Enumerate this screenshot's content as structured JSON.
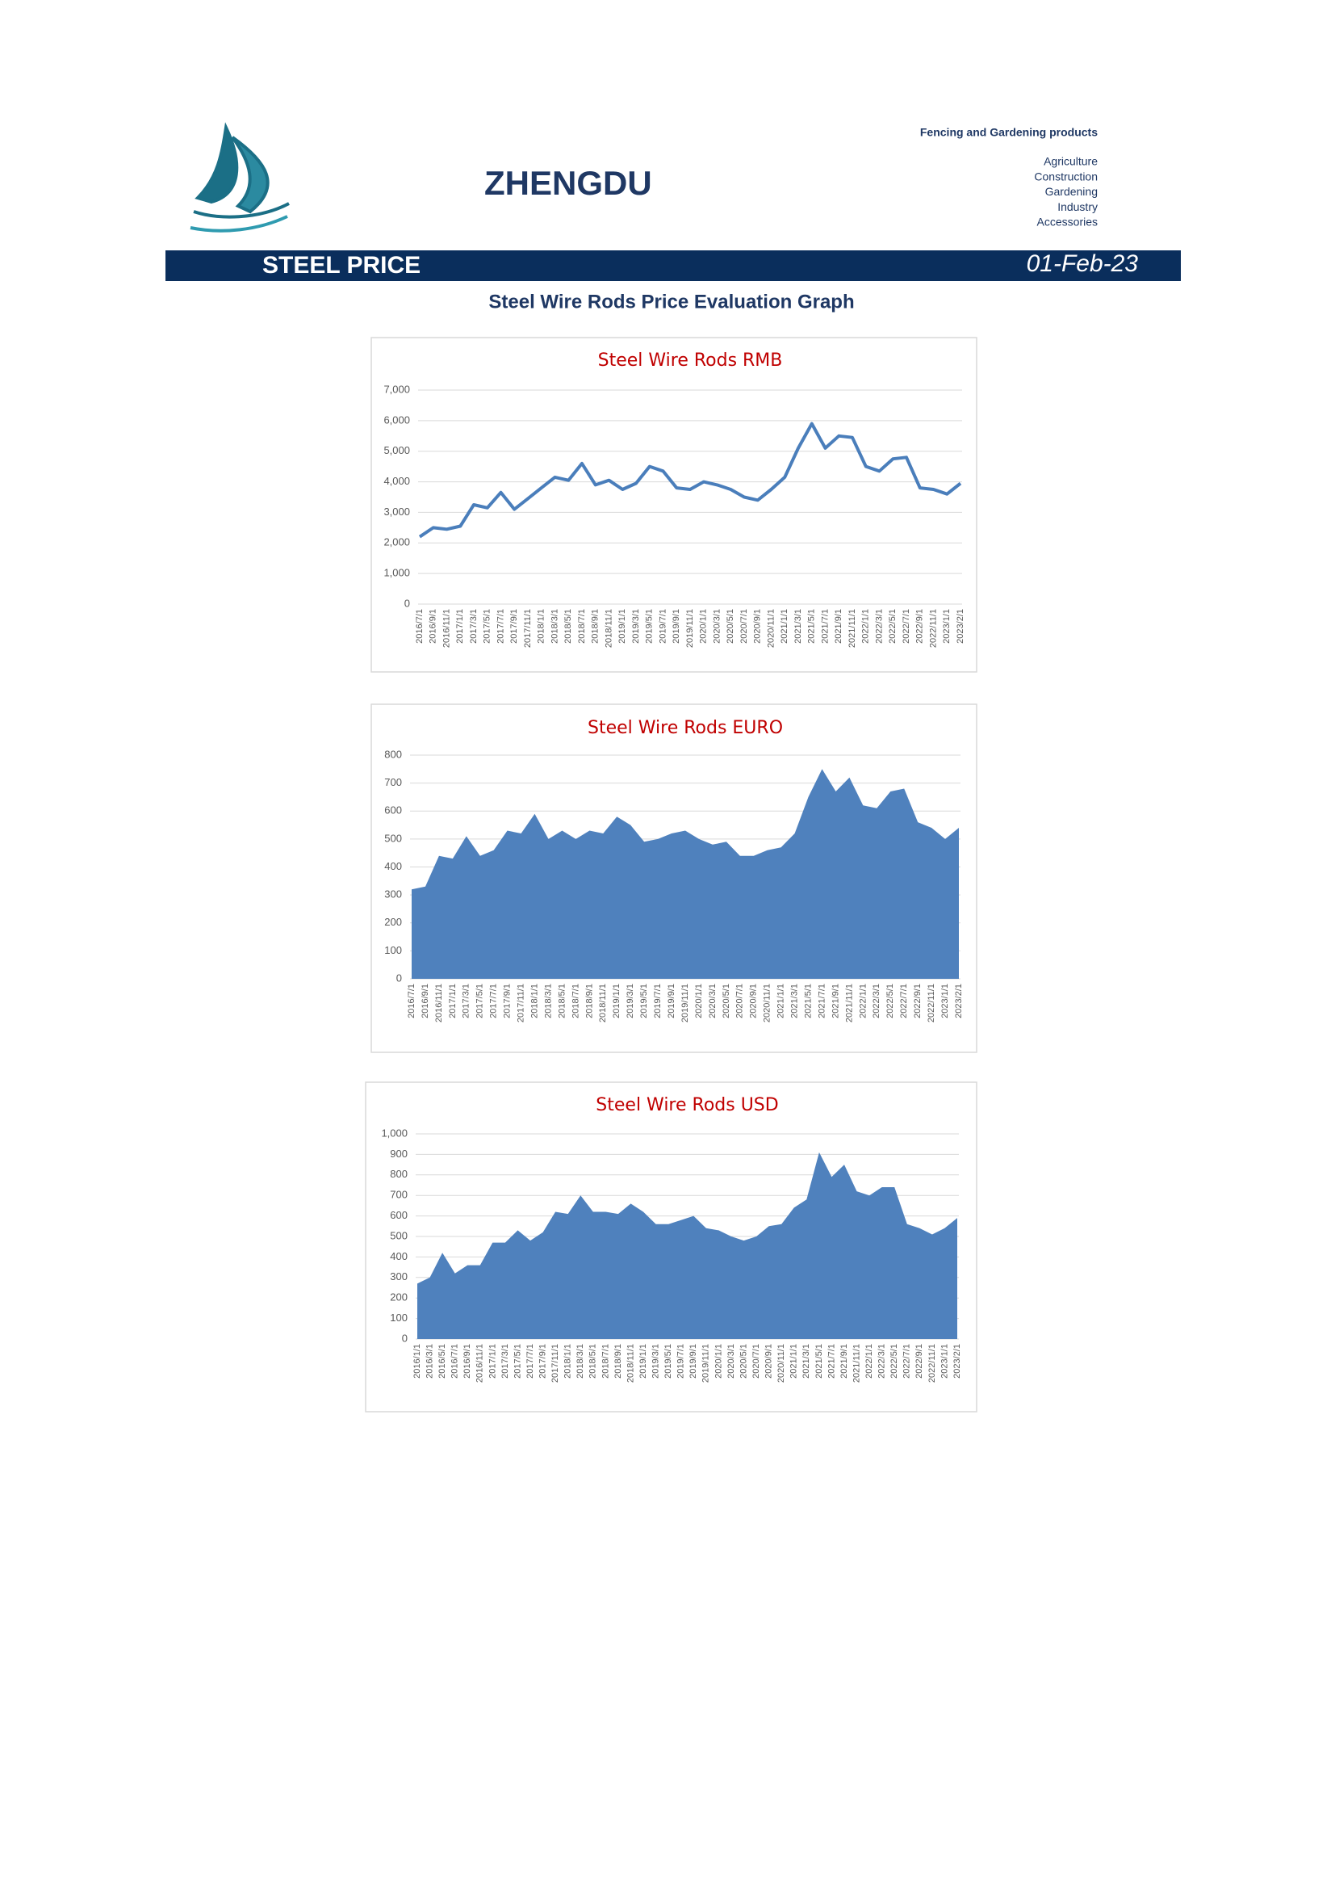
{
  "header": {
    "brand": "ZHENGDU",
    "tagline": "Fencing and Gardening products",
    "sectors": [
      "Agriculture",
      "Construction",
      "Gardening",
      "Industry",
      "Accessories"
    ]
  },
  "banner": {
    "label": "STEEL PRICE",
    "date": "01-Feb-23"
  },
  "subtitle": "Steel Wire Rods Price Evaluation Graph",
  "chart_data": [
    {
      "type": "line",
      "title": "Steel Wire Rods RMB",
      "color": "#4a7ebb",
      "categories": [
        "2016/7/1",
        "2016/9/1",
        "2016/11/1",
        "2017/1/1",
        "2017/3/1",
        "2017/5/1",
        "2017/7/1",
        "2017/9/1",
        "2017/11/1",
        "2018/1/1",
        "2018/3/1",
        "2018/5/1",
        "2018/7/1",
        "2018/9/1",
        "2018/11/1",
        "2019/1/1",
        "2019/3/1",
        "2019/5/1",
        "2019/7/1",
        "2019/9/1",
        "2019/11/1",
        "2020/1/1",
        "2020/3/1",
        "2020/5/1",
        "2020/7/1",
        "2020/9/1",
        "2020/11/1",
        "2021/1/1",
        "2021/3/1",
        "2021/5/1",
        "2021/7/1",
        "2021/9/1",
        "2021/11/1",
        "2022/1/1",
        "2022/3/1",
        "2022/5/1",
        "2022/7/1",
        "2022/9/1",
        "2022/11/1",
        "2023/1/1",
        "2023/2/1"
      ],
      "values": [
        2200,
        2500,
        2450,
        2550,
        3250,
        3150,
        3650,
        3100,
        3450,
        3800,
        4150,
        4050,
        4600,
        3900,
        4050,
        3750,
        3950,
        4500,
        4350,
        3800,
        3750,
        4000,
        3900,
        3750,
        3500,
        3400,
        3750,
        4150,
        5100,
        5900,
        5100,
        5500,
        5450,
        4500,
        4350,
        4750,
        4800,
        3800,
        3750,
        3600,
        3950
      ],
      "ylim": [
        0,
        7000
      ],
      "yticks": [
        0,
        {
          "value": 1000,
          "label": "1,000"
        },
        {
          "value": 2000,
          "label": "2,000"
        },
        {
          "value": 3000,
          "label": "3,000"
        },
        {
          "value": 4000,
          "label": "4,000"
        },
        {
          "value": 5000,
          "label": "5,000"
        },
        {
          "value": 6000,
          "label": "6,000"
        },
        {
          "value": 7000,
          "label": "7,000"
        }
      ],
      "grid": true
    },
    {
      "type": "area",
      "title": "Steel Wire Rods EURO",
      "color": "#4f81bd",
      "categories": [
        "2016/7/1",
        "2016/9/1",
        "2016/11/1",
        "2017/1/1",
        "2017/3/1",
        "2017/5/1",
        "2017/7/1",
        "2017/9/1",
        "2017/11/1",
        "2018/1/1",
        "2018/3/1",
        "2018/5/1",
        "2018/7/1",
        "2018/9/1",
        "2018/11/1",
        "2019/1/1",
        "2019/3/1",
        "2019/5/1",
        "2019/7/1",
        "2019/9/1",
        "2019/11/1",
        "2020/1/1",
        "2020/3/1",
        "2020/5/1",
        "2020/7/1",
        "2020/9/1",
        "2020/11/1",
        "2021/1/1",
        "2021/3/1",
        "2021/5/1",
        "2021/7/1",
        "2021/9/1",
        "2021/11/1",
        "2022/1/1",
        "2022/3/1",
        "2022/5/1",
        "2022/7/1",
        "2022/9/1",
        "2022/11/1",
        "2023/1/1",
        "2023/2/1"
      ],
      "values": [
        320,
        330,
        440,
        430,
        510,
        440,
        460,
        530,
        520,
        590,
        500,
        530,
        500,
        530,
        520,
        580,
        550,
        490,
        500,
        520,
        530,
        500,
        480,
        490,
        440,
        440,
        460,
        470,
        520,
        650,
        750,
        670,
        720,
        620,
        610,
        670,
        680,
        560,
        540,
        500,
        540
      ],
      "ylim": [
        0,
        800
      ],
      "yticks": [
        0,
        100,
        200,
        300,
        400,
        500,
        600,
        700,
        800
      ],
      "grid": true
    },
    {
      "type": "area",
      "title": "Steel Wire Rods USD",
      "color": "#4f81bd",
      "categories": [
        "2016/1/1",
        "2016/3/1",
        "2016/5/1",
        "2016/7/1",
        "2016/9/1",
        "2016/11/1",
        "2017/1/1",
        "2017/3/1",
        "2017/5/1",
        "2017/7/1",
        "2017/9/1",
        "2017/11/1",
        "2018/1/1",
        "2018/3/1",
        "2018/5/1",
        "2018/7/1",
        "2018/9/1",
        "2018/11/1",
        "2019/1/1",
        "2019/3/1",
        "2019/5/1",
        "2019/7/1",
        "2019/9/1",
        "2019/11/1",
        "2020/1/1",
        "2020/3/1",
        "2020/5/1",
        "2020/7/1",
        "2020/9/1",
        "2020/11/1",
        "2021/1/1",
        "2021/3/1",
        "2021/5/1",
        "2021/7/1",
        "2021/9/1",
        "2021/11/1",
        "2022/1/1",
        "2022/3/1",
        "2022/5/1",
        "2022/7/1",
        "2022/9/1",
        "2022/11/1",
        "2023/1/1",
        "2023/2/1"
      ],
      "values": [
        270,
        300,
        420,
        320,
        360,
        360,
        470,
        470,
        530,
        480,
        520,
        620,
        610,
        700,
        620,
        620,
        610,
        660,
        620,
        560,
        560,
        580,
        600,
        540,
        530,
        500,
        480,
        500,
        550,
        560,
        640,
        680,
        910,
        790,
        850,
        720,
        700,
        740,
        740,
        560,
        540,
        510,
        540,
        590
      ],
      "ylim": [
        0,
        1000
      ],
      "yticks": [
        0,
        100,
        200,
        300,
        400,
        500,
        600,
        700,
        800,
        900,
        {
          "value": 1000,
          "label": "1,000"
        }
      ],
      "grid": true
    }
  ]
}
